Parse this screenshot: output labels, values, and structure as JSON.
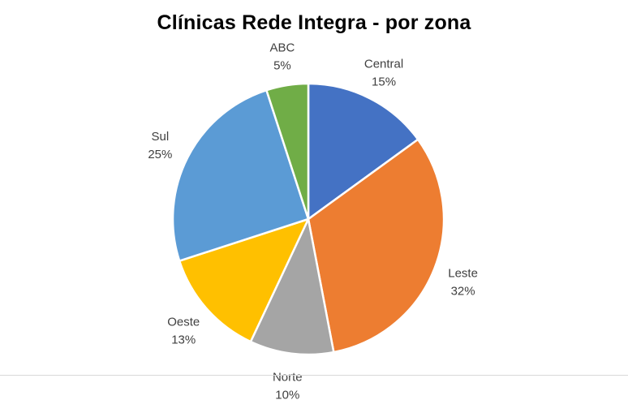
{
  "chart_data": {
    "type": "pie",
    "title": "Clínicas Rede Integra - por zona",
    "start_angle_deg": 0,
    "direction": "clockwise",
    "legend": "none",
    "slices": [
      {
        "label": "Central",
        "value": 15,
        "value_label": "15%",
        "color": "#4472C4"
      },
      {
        "label": "Leste",
        "value": 32,
        "value_label": "32%",
        "color": "#ED7D31"
      },
      {
        "label": "Norte",
        "value": 10,
        "value_label": "10%",
        "color": "#A5A5A5"
      },
      {
        "label": "Oeste",
        "value": 13,
        "value_label": "13%",
        "color": "#FFC000"
      },
      {
        "label": "Sul",
        "value": 25,
        "value_label": "25%",
        "color": "#5B9BD5"
      },
      {
        "label": "ABC",
        "value": 5,
        "value_label": "5%",
        "color": "#70AD47"
      }
    ]
  }
}
